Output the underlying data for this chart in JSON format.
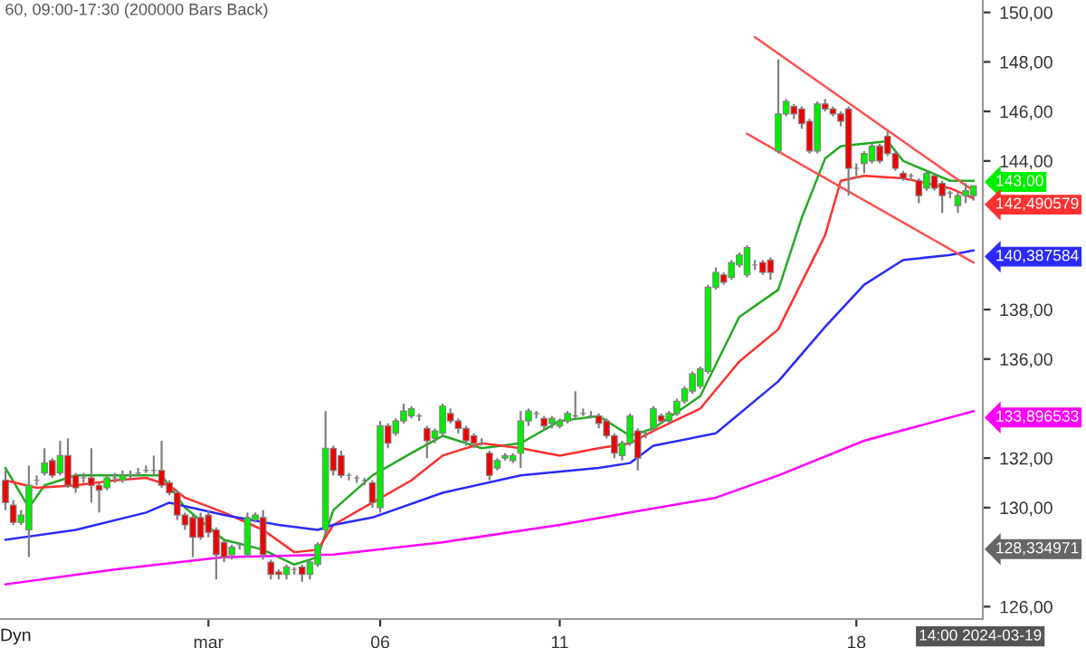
{
  "chart_data": {
    "type": "candlestick",
    "title": "60, 09:00-17:30 (200000 Bars Back)",
    "categories": [
      null,
      null,
      null,
      null,
      null,
      null,
      null,
      null,
      null,
      null,
      null,
      null,
      null,
      null,
      null,
      null,
      null,
      null,
      null,
      null,
      null,
      null,
      null,
      null,
      null,
      null,
      "mar",
      null,
      null,
      null,
      null,
      null,
      null,
      null,
      null,
      null,
      null,
      null,
      null,
      null,
      null,
      null,
      null,
      null,
      null,
      null,
      null,
      null,
      "06",
      null,
      null,
      null,
      null,
      null,
      null,
      null,
      null,
      null,
      null,
      null,
      null,
      null,
      null,
      null,
      null,
      null,
      null,
      null,
      null,
      null,
      null,
      "11",
      null,
      null,
      null,
      null,
      null,
      null,
      null,
      null,
      null,
      null,
      null,
      null,
      null,
      null,
      null,
      null,
      null,
      null,
      null,
      null,
      null,
      null,
      null,
      null,
      null,
      null,
      null,
      null,
      null,
      null,
      null,
      null,
      null,
      null,
      null,
      null,
      null,
      "18",
      null,
      null,
      null,
      null,
      null,
      null,
      null,
      null,
      null,
      null,
      null,
      null,
      null,
      null,
      null
    ],
    "value_labels": [
      null,
      null,
      null,
      null,
      null,
      null,
      null,
      null,
      null,
      null,
      null,
      null,
      null,
      null,
      null,
      null,
      null,
      null,
      null,
      null,
      null,
      null,
      null,
      null,
      null,
      null,
      null,
      null,
      null,
      null,
      null,
      null,
      null,
      null,
      null,
      null,
      null,
      null,
      null,
      null,
      null,
      null,
      null,
      null,
      null,
      null,
      null,
      null,
      null,
      null,
      null,
      null,
      null,
      null,
      null,
      null,
      null,
      null,
      null,
      null,
      null,
      null,
      null,
      null,
      null,
      null,
      null,
      null,
      null,
      null,
      null,
      null,
      null,
      null,
      null,
      null,
      null,
      null,
      null,
      null,
      null,
      null,
      null,
      null,
      null,
      null,
      null,
      null,
      null,
      null,
      null,
      null,
      null,
      null,
      null,
      null,
      null,
      null,
      null,
      null,
      null,
      null,
      null,
      null,
      null,
      null,
      null,
      null,
      null,
      null,
      null,
      null,
      null,
      null,
      null,
      null,
      null,
      null,
      null,
      null,
      null,
      null,
      null,
      null,
      "143,00"
    ],
    "ohlc": [
      [
        131.1,
        131.5,
        129.9,
        130.2
      ],
      [
        130.1,
        130.3,
        129.3,
        129.4
      ],
      [
        129.4,
        129.9,
        129.3,
        129.7
      ],
      [
        129.1,
        131.7,
        128.0,
        130.9
      ],
      [
        131.1,
        131.3,
        130.9,
        131.1
      ],
      [
        131.4,
        132.4,
        131.3,
        131.8
      ],
      [
        131.9,
        132.0,
        131.2,
        131.3
      ],
      [
        131.4,
        132.7,
        131.3,
        132.1
      ],
      [
        132.1,
        132.8,
        130.8,
        130.9
      ],
      [
        131.3,
        131.4,
        130.6,
        130.8
      ],
      [
        131.2,
        131.4,
        131.0,
        131.2
      ],
      [
        131.2,
        132.4,
        130.2,
        130.9
      ],
      [
        130.9,
        131.0,
        129.8,
        130.7
      ],
      [
        130.8,
        131.3,
        130.7,
        131.2
      ],
      [
        131.2,
        131.4,
        131.0,
        131.2
      ],
      [
        131.1,
        131.5,
        131.0,
        131.3
      ],
      [
        131.3,
        131.5,
        131.2,
        131.3
      ],
      [
        131.4,
        131.6,
        131.3,
        131.4
      ],
      [
        131.5,
        131.7,
        131.4,
        131.5
      ],
      [
        131.5,
        132.1,
        131.3,
        131.5
      ],
      [
        131.5,
        132.7,
        130.8,
        130.9
      ],
      [
        131.0,
        131.1,
        130.5,
        130.6
      ],
      [
        130.6,
        130.7,
        129.5,
        129.7
      ],
      [
        129.7,
        129.8,
        129.1,
        129.3
      ],
      [
        129.6,
        129.7,
        128.0,
        128.8
      ],
      [
        129.6,
        129.8,
        128.7,
        128.8
      ],
      [
        129.7,
        129.9,
        128.8,
        129.0
      ],
      [
        129.1,
        129.2,
        127.1,
        128.1
      ],
      [
        128.6,
        128.7,
        127.8,
        128.0
      ],
      [
        128.1,
        128.5,
        127.9,
        128.4
      ],
      [
        128.5,
        128.6,
        128.3,
        128.5
      ],
      [
        128.1,
        129.8,
        128.0,
        129.6
      ],
      [
        129.5,
        129.8,
        129.4,
        129.7
      ],
      [
        129.6,
        129.9,
        127.9,
        128.1
      ],
      [
        127.8,
        127.9,
        127.1,
        127.3
      ],
      [
        127.4,
        127.5,
        127.1,
        127.3
      ],
      [
        127.3,
        127.7,
        127.1,
        127.6
      ],
      [
        127.5,
        127.6,
        127.3,
        127.5
      ],
      [
        127.6,
        127.7,
        127.0,
        127.3
      ],
      [
        127.3,
        127.9,
        127.1,
        127.8
      ],
      [
        127.7,
        128.6,
        127.6,
        128.5
      ],
      [
        129.1,
        133.9,
        128.9,
        132.4
      ],
      [
        132.4,
        132.5,
        131.3,
        131.5
      ],
      [
        132.1,
        132.3,
        131.2,
        131.3
      ],
      [
        131.3,
        131.4,
        131.1,
        131.3
      ],
      [
        131.2,
        131.3,
        131.0,
        131.2
      ],
      [
        131.1,
        131.2,
        130.9,
        131.1
      ],
      [
        131.0,
        131.1,
        130.0,
        130.2
      ],
      [
        130.0,
        133.5,
        129.8,
        133.3
      ],
      [
        133.3,
        133.4,
        132.4,
        132.6
      ],
      [
        133.0,
        133.6,
        132.9,
        133.5
      ],
      [
        133.5,
        134.2,
        133.4,
        133.9
      ],
      [
        133.7,
        134.1,
        133.6,
        134.0
      ],
      [
        133.7,
        133.8,
        133.5,
        133.7
      ],
      [
        133.2,
        133.3,
        132.0,
        132.7
      ],
      [
        132.8,
        133.2,
        132.6,
        133.1
      ],
      [
        133.0,
        134.2,
        132.9,
        134.1
      ],
      [
        133.8,
        134.0,
        133.4,
        133.5
      ],
      [
        133.5,
        133.6,
        133.0,
        133.2
      ],
      [
        133.2,
        133.3,
        132.5,
        132.7
      ],
      [
        132.9,
        133.0,
        132.4,
        132.6
      ],
      [
        132.6,
        132.8,
        132.5,
        132.6
      ],
      [
        132.2,
        132.3,
        131.1,
        131.3
      ],
      [
        131.6,
        132.0,
        131.5,
        131.9
      ],
      [
        132.0,
        132.2,
        131.9,
        132.1
      ],
      [
        131.9,
        132.2,
        131.8,
        132.1
      ],
      [
        132.2,
        133.9,
        131.6,
        133.5
      ],
      [
        133.5,
        134.0,
        133.3,
        133.9
      ],
      [
        133.8,
        133.9,
        133.6,
        133.8
      ],
      [
        133.6,
        133.7,
        133.1,
        133.3
      ],
      [
        133.4,
        133.7,
        133.2,
        133.6
      ],
      [
        133.3,
        133.6,
        133.2,
        133.5
      ],
      [
        133.5,
        133.9,
        133.4,
        133.8
      ],
      [
        133.7,
        134.7,
        133.6,
        133.7
      ],
      [
        133.8,
        134.0,
        133.7,
        133.8
      ],
      [
        133.7,
        133.9,
        133.6,
        133.7
      ],
      [
        133.7,
        133.8,
        133.2,
        133.4
      ],
      [
        133.5,
        133.6,
        132.8,
        132.9
      ],
      [
        132.9,
        133.0,
        132.0,
        132.2
      ],
      [
        132.1,
        132.7,
        131.9,
        132.6
      ],
      [
        132.6,
        133.8,
        132.5,
        133.7
      ],
      [
        133.1,
        133.2,
        131.5,
        132.0
      ],
      [
        133.0,
        133.1,
        132.8,
        133.0
      ],
      [
        133.2,
        134.1,
        133.1,
        134.0
      ],
      [
        133.7,
        133.8,
        133.4,
        133.5
      ],
      [
        133.5,
        133.9,
        133.4,
        133.8
      ],
      [
        133.8,
        134.4,
        133.7,
        134.3
      ],
      [
        134.3,
        134.9,
        134.2,
        134.8
      ],
      [
        134.7,
        135.5,
        134.6,
        135.4
      ],
      [
        134.9,
        135.7,
        134.8,
        135.6
      ],
      [
        135.5,
        139.0,
        135.4,
        138.9
      ],
      [
        138.9,
        139.7,
        138.8,
        139.5
      ],
      [
        139.4,
        139.5,
        139.0,
        139.1
      ],
      [
        139.3,
        140.0,
        139.2,
        139.9
      ],
      [
        139.8,
        140.3,
        139.7,
        140.2
      ],
      [
        139.4,
        140.6,
        139.3,
        140.5
      ],
      [
        139.8,
        140.0,
        139.6,
        139.8
      ],
      [
        139.9,
        140.0,
        139.4,
        139.5
      ],
      [
        140.0,
        140.1,
        139.2,
        139.5
      ],
      [
        144.4,
        148.1,
        144.3,
        145.9
      ],
      [
        145.9,
        146.5,
        145.8,
        146.4
      ],
      [
        146.2,
        146.3,
        145.7,
        145.9
      ],
      [
        146.1,
        146.2,
        145.3,
        145.5
      ],
      [
        145.6,
        145.7,
        144.3,
        144.4
      ],
      [
        144.4,
        146.4,
        144.3,
        146.3
      ],
      [
        146.3,
        146.5,
        146.0,
        146.1
      ],
      [
        146.1,
        146.2,
        145.8,
        145.9
      ],
      [
        145.9,
        146.0,
        145.4,
        145.6
      ],
      [
        146.1,
        146.2,
        142.6,
        143.7
      ],
      [
        143.7,
        143.9,
        143.3,
        143.7
      ],
      [
        143.9,
        144.4,
        143.5,
        144.3
      ],
      [
        144.0,
        144.7,
        143.9,
        144.6
      ],
      [
        144.6,
        144.7,
        143.9,
        144.0
      ],
      [
        145.0,
        145.2,
        144.2,
        144.3
      ],
      [
        144.3,
        144.4,
        143.6,
        143.7
      ],
      [
        143.5,
        143.6,
        143.2,
        143.3
      ],
      [
        143.4,
        143.5,
        143.2,
        143.4
      ],
      [
        143.2,
        143.3,
        142.3,
        142.6
      ],
      [
        142.9,
        143.6,
        142.8,
        143.5
      ],
      [
        143.4,
        143.5,
        142.8,
        142.9
      ],
      [
        143.1,
        143.2,
        141.9,
        142.6
      ],
      [
        142.7,
        142.8,
        142.5,
        142.7
      ],
      [
        142.2,
        142.8,
        141.9,
        142.6
      ],
      [
        142.6,
        143.1,
        142.3,
        142.8
      ],
      [
        142.6,
        143.0,
        142.4,
        143.0
      ]
    ],
    "series": [
      {
        "type": "line",
        "color": "#22aa22",
        "values": [
          131.6,
          null,
          null,
          130.0,
          null,
          130.9,
          null,
          null,
          null,
          131.3,
          null,
          null,
          null,
          null,
          131.3,
          null,
          null,
          null,
          null,
          null,
          131.3,
          null,
          null,
          130.0,
          null,
          null,
          null,
          null,
          128.7,
          null,
          null,
          null,
          null,
          128.3,
          null,
          null,
          null,
          127.7,
          null,
          null,
          128.0,
          null,
          129.9,
          null,
          null,
          null,
          null,
          131.3,
          null,
          null,
          null,
          null,
          132.2,
          null,
          null,
          null,
          132.9,
          null,
          null,
          null,
          null,
          132.4,
          null,
          null,
          null,
          null,
          132.6,
          null,
          null,
          null,
          null,
          133.5,
          null,
          null,
          null,
          null,
          133.7,
          null,
          null,
          null,
          132.9,
          null,
          null,
          133.2,
          null,
          null,
          null,
          null,
          null,
          134.5,
          null,
          null,
          null,
          null,
          137.7,
          null,
          null,
          null,
          null,
          138.8,
          null,
          null,
          141.7,
          null,
          null,
          144.1,
          null,
          144.6,
          null,
          null,
          null,
          null,
          null,
          144.8,
          null,
          144.0,
          null,
          null,
          null,
          null,
          null,
          143.2,
          null,
          null,
          143.2
        ]
      },
      {
        "type": "line",
        "color": "#ff3030",
        "values": [
          131.1,
          null,
          null,
          null,
          130.8,
          null,
          null,
          null,
          null,
          130.9,
          null,
          null,
          null,
          null,
          131.1,
          null,
          null,
          null,
          131.2,
          null,
          null,
          130.9,
          null,
          130.4,
          null,
          null,
          null,
          null,
          129.8,
          null,
          null,
          null,
          null,
          129.1,
          null,
          null,
          null,
          128.2,
          null,
          null,
          128.3,
          null,
          129.3,
          null,
          null,
          null,
          null,
          130.2,
          null,
          null,
          null,
          null,
          131.1,
          null,
          null,
          null,
          132.1,
          null,
          null,
          null,
          null,
          132.6,
          null,
          null,
          null,
          null,
          132.4,
          null,
          null,
          null,
          null,
          132.1,
          null,
          null,
          null,
          null,
          132.4,
          null,
          null,
          null,
          132.6,
          null,
          null,
          133.1,
          null,
          null,
          null,
          null,
          null,
          134.0,
          null,
          null,
          null,
          null,
          135.9,
          null,
          null,
          null,
          null,
          137.2,
          null,
          null,
          null,
          null,
          null,
          141.0,
          null,
          143.2,
          null,
          null,
          143.4,
          null,
          null,
          null,
          null,
          143.3,
          null,
          null,
          null,
          null,
          null,
          142.9,
          null,
          null,
          142.490579
        ],
        "value_labels": [
          null,
          null,
          null,
          null,
          null,
          null,
          null,
          null,
          null,
          null,
          null,
          null,
          null,
          null,
          null,
          null,
          null,
          null,
          null,
          null,
          null,
          null,
          null,
          null,
          null,
          null,
          null,
          null,
          null,
          null,
          null,
          null,
          null,
          null,
          null,
          null,
          null,
          null,
          null,
          null,
          null,
          null,
          null,
          null,
          null,
          null,
          null,
          null,
          null,
          null,
          null,
          null,
          null,
          null,
          null,
          null,
          null,
          null,
          null,
          null,
          null,
          null,
          null,
          null,
          null,
          null,
          null,
          null,
          null,
          null,
          null,
          null,
          null,
          null,
          null,
          null,
          null,
          null,
          null,
          null,
          null,
          null,
          null,
          null,
          null,
          null,
          null,
          null,
          null,
          null,
          null,
          null,
          null,
          null,
          null,
          null,
          null,
          null,
          null,
          null,
          null,
          null,
          null,
          null,
          null,
          null,
          null,
          null,
          null,
          null,
          null,
          null,
          null,
          null,
          null,
          null,
          null,
          null,
          null,
          null,
          null,
          null,
          null,
          null,
          "142,490579"
        ]
      },
      {
        "type": "line",
        "color": "#2a2aff",
        "values": [
          128.7,
          null,
          null,
          null,
          null,
          null,
          null,
          null,
          null,
          129.1,
          null,
          null,
          null,
          null,
          null,
          null,
          null,
          null,
          129.8,
          null,
          null,
          130.2,
          null,
          null,
          null,
          null,
          null,
          null,
          129.7,
          null,
          null,
          null,
          null,
          null,
          null,
          129.3,
          null,
          null,
          null,
          null,
          129.1,
          null,
          129.3,
          null,
          null,
          null,
          null,
          129.6,
          null,
          null,
          null,
          null,
          null,
          null,
          null,
          null,
          130.6,
          null,
          null,
          null,
          null,
          null,
          null,
          null,
          null,
          null,
          131.3,
          null,
          null,
          null,
          null,
          null,
          null,
          null,
          null,
          null,
          131.6,
          null,
          null,
          null,
          131.8,
          null,
          null,
          132.5,
          null,
          null,
          null,
          null,
          null,
          null,
          null,
          133.0,
          null,
          null,
          null,
          null,
          null,
          null,
          null,
          135.1,
          null,
          null,
          null,
          null,
          null,
          137.3,
          null,
          null,
          null,
          null,
          139.0,
          null,
          null,
          null,
          null,
          140.0,
          null,
          null,
          null,
          null,
          null,
          140.2,
          null,
          null,
          140.387584
        ],
        "value_labels": [
          null,
          null,
          null,
          null,
          null,
          null,
          null,
          null,
          null,
          null,
          null,
          null,
          null,
          null,
          null,
          null,
          null,
          null,
          null,
          null,
          null,
          null,
          null,
          null,
          null,
          null,
          null,
          null,
          null,
          null,
          null,
          null,
          null,
          null,
          null,
          null,
          null,
          null,
          null,
          null,
          null,
          null,
          null,
          null,
          null,
          null,
          null,
          null,
          null,
          null,
          null,
          null,
          null,
          null,
          null,
          null,
          null,
          null,
          null,
          null,
          null,
          null,
          null,
          null,
          null,
          null,
          null,
          null,
          null,
          null,
          null,
          null,
          null,
          null,
          null,
          null,
          null,
          null,
          null,
          null,
          null,
          null,
          null,
          null,
          null,
          null,
          null,
          null,
          null,
          null,
          null,
          null,
          null,
          null,
          null,
          null,
          null,
          null,
          null,
          null,
          null,
          null,
          null,
          null,
          null,
          null,
          null,
          null,
          null,
          null,
          null,
          null,
          null,
          null,
          null,
          null,
          null,
          null,
          null,
          null,
          null,
          null,
          null,
          null,
          "140,387584"
        ]
      },
      {
        "type": "line",
        "color": "#ff00ff",
        "values": [
          126.9,
          null,
          null,
          null,
          null,
          null,
          null,
          null,
          null,
          null,
          null,
          null,
          null,
          null,
          127.5,
          null,
          null,
          null,
          null,
          null,
          null,
          null,
          null,
          null,
          null,
          null,
          null,
          null,
          128.0,
          null,
          null,
          null,
          null,
          null,
          null,
          null,
          null,
          null,
          null,
          null,
          null,
          null,
          128.1,
          null,
          null,
          null,
          null,
          null,
          null,
          null,
          null,
          null,
          null,
          null,
          null,
          null,
          128.6,
          null,
          null,
          null,
          null,
          null,
          null,
          null,
          null,
          null,
          null,
          null,
          null,
          null,
          null,
          129.3,
          null,
          null,
          null,
          null,
          null,
          null,
          null,
          null,
          129.8,
          null,
          null,
          null,
          null,
          null,
          null,
          null,
          null,
          null,
          null,
          130.4,
          null,
          null,
          null,
          null,
          null,
          null,
          null,
          131.3,
          null,
          null,
          null,
          null,
          null,
          null,
          null,
          null,
          null,
          null,
          132.7,
          null,
          null,
          null,
          null,
          null,
          null,
          null,
          null,
          null,
          null,
          null,
          null,
          null,
          133.896533
        ],
        "value_labels": [
          null,
          null,
          null,
          null,
          null,
          null,
          null,
          null,
          null,
          null,
          null,
          null,
          null,
          null,
          null,
          null,
          null,
          null,
          null,
          null,
          null,
          null,
          null,
          null,
          null,
          null,
          null,
          null,
          null,
          null,
          null,
          null,
          null,
          null,
          null,
          null,
          null,
          null,
          null,
          null,
          null,
          null,
          null,
          null,
          null,
          null,
          null,
          null,
          null,
          null,
          null,
          null,
          null,
          null,
          null,
          null,
          null,
          null,
          null,
          null,
          null,
          null,
          null,
          null,
          null,
          null,
          null,
          null,
          null,
          null,
          null,
          null,
          null,
          null,
          null,
          null,
          null,
          null,
          null,
          null,
          null,
          null,
          null,
          null,
          null,
          null,
          null,
          null,
          null,
          null,
          null,
          null,
          null,
          null,
          null,
          null,
          null,
          null,
          null,
          null,
          null,
          null,
          null,
          null,
          null,
          null,
          null,
          null,
          null,
          null,
          null,
          null,
          null,
          null,
          null,
          null,
          null,
          null,
          null,
          null,
          null,
          null,
          null,
          null,
          "133,896533"
        ]
      },
      {
        "type": "line",
        "color": "#ff5050",
        "values": [
          null,
          null,
          null,
          null,
          null,
          null,
          null,
          null,
          null,
          null,
          null,
          null,
          null,
          null,
          null,
          null,
          null,
          null,
          null,
          null,
          null,
          null,
          null,
          null,
          null,
          null,
          null,
          null,
          null,
          null,
          null,
          null,
          null,
          null,
          null,
          null,
          null,
          null,
          null,
          null,
          null,
          null,
          null,
          null,
          null,
          null,
          null,
          null,
          null,
          null,
          null,
          null,
          null,
          null,
          null,
          null,
          null,
          null,
          null,
          null,
          null,
          null,
          null,
          null,
          null,
          null,
          null,
          null,
          null,
          null,
          null,
          null,
          null,
          null,
          null,
          null,
          null,
          null,
          null,
          null,
          null,
          null,
          null,
          null,
          null,
          null,
          null,
          null,
          null,
          null,
          null,
          null,
          null,
          null,
          null,
          null,
          149.0,
          null,
          null,
          null,
          null,
          null,
          null,
          null,
          null,
          null,
          null,
          null,
          null,
          null,
          null,
          null,
          null,
          null,
          null,
          null,
          null,
          null,
          null,
          null,
          null,
          null,
          null,
          null,
          142.8
        ]
      },
      {
        "type": "line",
        "color": "#ff5050",
        "values": [
          null,
          null,
          null,
          null,
          null,
          null,
          null,
          null,
          null,
          null,
          null,
          null,
          null,
          null,
          null,
          null,
          null,
          null,
          null,
          null,
          null,
          null,
          null,
          null,
          null,
          null,
          null,
          null,
          null,
          null,
          null,
          null,
          null,
          null,
          null,
          null,
          null,
          null,
          null,
          null,
          null,
          null,
          null,
          null,
          null,
          null,
          null,
          null,
          null,
          null,
          null,
          null,
          null,
          null,
          null,
          null,
          null,
          null,
          null,
          null,
          null,
          null,
          null,
          null,
          null,
          null,
          null,
          null,
          null,
          null,
          null,
          null,
          null,
          null,
          null,
          null,
          null,
          null,
          null,
          null,
          null,
          null,
          null,
          null,
          null,
          null,
          null,
          null,
          null,
          null,
          null,
          null,
          null,
          null,
          null,
          145.1,
          null,
          null,
          null,
          null,
          null,
          null,
          null,
          null,
          null,
          null,
          null,
          null,
          null,
          null,
          null,
          null,
          null,
          null,
          null,
          null,
          null,
          null,
          null,
          null,
          null,
          null,
          null,
          null,
          139.9
        ]
      }
    ],
    "annotations": [
      "14:00 2024-03-19",
      "Dyn",
      "128,334971"
    ],
    "ylim": [
      125.5,
      150.5
    ],
    "yticks": [
      {
        "value": 126,
        "label": "126,00"
      },
      {
        "value": 130,
        "label": "130,00"
      },
      {
        "value": 132,
        "label": "132,00"
      },
      {
        "value": 136,
        "label": "136,00"
      },
      {
        "value": 138,
        "label": "138,00"
      },
      {
        "value": 144,
        "label": "144,00"
      },
      {
        "value": 146,
        "label": "146,00"
      },
      {
        "value": 148,
        "label": "148,00"
      },
      {
        "value": 150,
        "label": "150,00"
      }
    ],
    "grid": false,
    "legend": false
  }
}
